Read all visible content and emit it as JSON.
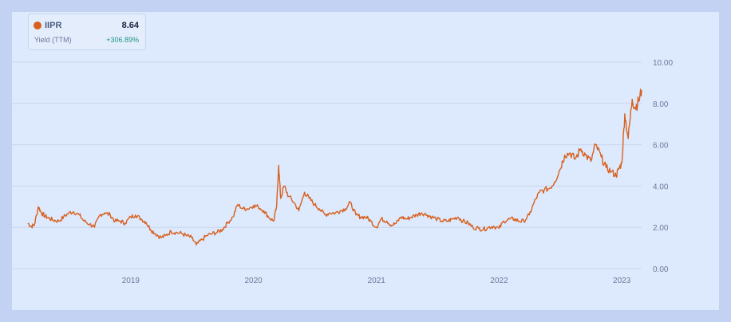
{
  "legend": {
    "ticker": "IIPR",
    "value": "8.64",
    "metric": "Yield (TTM)",
    "change": "+306.89%"
  },
  "colors": {
    "series": "#d8601e",
    "change_positive": "#1a9487",
    "background": "#dde9fc"
  },
  "chart_data": {
    "type": "line",
    "title": "",
    "xlabel": "",
    "ylabel": "",
    "ylim": [
      0,
      10
    ],
    "y_ticks": [
      "0.00",
      "2.00",
      "4.00",
      "6.00",
      "8.00",
      "10.00"
    ],
    "x_ticks": [
      "2019",
      "2020",
      "2021",
      "2022",
      "2023"
    ],
    "x_range": [
      "2018-03",
      "2023-03"
    ],
    "grid": true,
    "y_axis_position": "right",
    "series": [
      {
        "name": "IIPR",
        "x": [
          "2018-03-01",
          "2018-03-10",
          "2018-03-20",
          "2018-04-01",
          "2018-04-10",
          "2018-04-20",
          "2018-05-01",
          "2018-05-15",
          "2018-06-01",
          "2018-06-15",
          "2018-07-01",
          "2018-07-15",
          "2018-08-01",
          "2018-08-15",
          "2018-09-01",
          "2018-09-15",
          "2018-10-01",
          "2018-10-15",
          "2018-11-01",
          "2018-11-15",
          "2018-12-01",
          "2018-12-15",
          "2019-01-01",
          "2019-01-15",
          "2019-02-01",
          "2019-02-15",
          "2019-03-01",
          "2019-03-15",
          "2019-04-01",
          "2019-04-15",
          "2019-05-01",
          "2019-05-15",
          "2019-06-01",
          "2019-06-15",
          "2019-07-01",
          "2019-07-15",
          "2019-08-01",
          "2019-08-15",
          "2019-09-01",
          "2019-09-15",
          "2019-10-01",
          "2019-10-15",
          "2019-11-01",
          "2019-11-15",
          "2019-12-01",
          "2019-12-15",
          "2020-01-01",
          "2020-01-15",
          "2020-02-01",
          "2020-02-15",
          "2020-03-01",
          "2020-03-10",
          "2020-03-16",
          "2020-03-22",
          "2020-04-01",
          "2020-04-15",
          "2020-05-01",
          "2020-05-15",
          "2020-06-01",
          "2020-06-15",
          "2020-07-01",
          "2020-07-15",
          "2020-08-01",
          "2020-08-15",
          "2020-09-01",
          "2020-09-15",
          "2020-10-01",
          "2020-10-15",
          "2020-11-01",
          "2020-11-15",
          "2020-12-01",
          "2020-12-15",
          "2021-01-01",
          "2021-01-15",
          "2021-02-01",
          "2021-02-15",
          "2021-03-01",
          "2021-03-15",
          "2021-04-01",
          "2021-04-15",
          "2021-05-01",
          "2021-05-15",
          "2021-06-01",
          "2021-06-15",
          "2021-07-01",
          "2021-07-15",
          "2021-08-01",
          "2021-08-15",
          "2021-09-01",
          "2021-09-15",
          "2021-10-01",
          "2021-10-15",
          "2021-11-01",
          "2021-11-15",
          "2021-12-01",
          "2021-12-15",
          "2022-01-01",
          "2022-01-15",
          "2022-02-01",
          "2022-02-15",
          "2022-03-01",
          "2022-03-15",
          "2022-04-01",
          "2022-04-15",
          "2022-05-01",
          "2022-05-15",
          "2022-06-01",
          "2022-06-15",
          "2022-07-01",
          "2022-07-15",
          "2022-08-01",
          "2022-08-15",
          "2022-09-01",
          "2022-09-15",
          "2022-10-01",
          "2022-10-15",
          "2022-11-01",
          "2022-11-15",
          "2022-12-01",
          "2022-12-15",
          "2022-12-22",
          "2023-01-01",
          "2023-01-10",
          "2023-01-20",
          "2023-02-01",
          "2023-02-10",
          "2023-02-20",
          "2023-03-01"
        ],
        "y": [
          2.2,
          2.05,
          2.1,
          3.0,
          2.7,
          2.55,
          2.45,
          2.35,
          2.3,
          2.5,
          2.7,
          2.75,
          2.6,
          2.3,
          2.15,
          2.0,
          2.6,
          2.7,
          2.6,
          2.3,
          2.3,
          2.2,
          2.5,
          2.6,
          2.4,
          2.25,
          1.9,
          1.7,
          1.5,
          1.6,
          1.8,
          1.75,
          1.7,
          1.6,
          1.5,
          1.15,
          1.4,
          1.6,
          1.7,
          1.75,
          1.9,
          2.2,
          2.5,
          3.1,
          2.9,
          2.9,
          3.05,
          3.0,
          2.8,
          2.5,
          2.3,
          3.0,
          5.0,
          3.4,
          4.0,
          3.5,
          3.2,
          2.8,
          3.7,
          3.4,
          3.1,
          2.9,
          2.6,
          2.7,
          2.7,
          2.8,
          2.9,
          3.2,
          2.6,
          2.5,
          2.5,
          2.3,
          2.0,
          2.4,
          2.3,
          2.1,
          2.2,
          2.5,
          2.4,
          2.5,
          2.6,
          2.7,
          2.6,
          2.5,
          2.4,
          2.3,
          2.3,
          2.4,
          2.5,
          2.3,
          2.2,
          2.0,
          1.95,
          1.9,
          2.0,
          2.05,
          1.95,
          2.3,
          2.4,
          2.4,
          2.3,
          2.3,
          2.6,
          3.2,
          3.7,
          3.8,
          3.9,
          4.2,
          4.8,
          5.5,
          5.6,
          5.3,
          5.8,
          5.5,
          5.2,
          6.0,
          5.4,
          4.9,
          4.7,
          4.5,
          4.8,
          5.1,
          7.5,
          6.3,
          8.2,
          7.8,
          8.1,
          8.64
        ]
      }
    ]
  }
}
